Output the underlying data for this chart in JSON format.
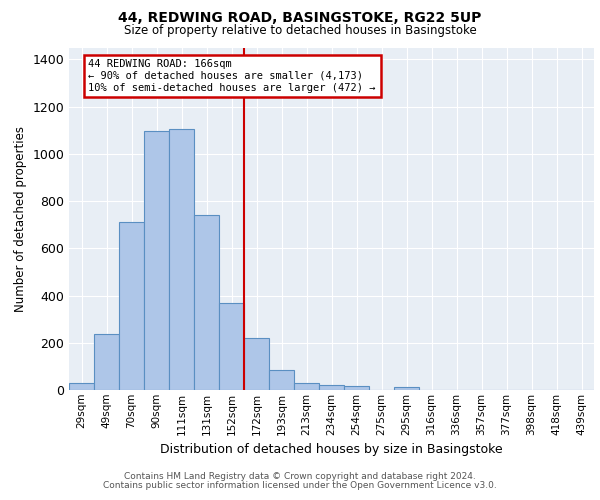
{
  "title1": "44, REDWING ROAD, BASINGSTOKE, RG22 5UP",
  "title2": "Size of property relative to detached houses in Basingstoke",
  "xlabel": "Distribution of detached houses by size in Basingstoke",
  "ylabel": "Number of detached properties",
  "categories": [
    "29sqm",
    "49sqm",
    "70sqm",
    "90sqm",
    "111sqm",
    "131sqm",
    "152sqm",
    "172sqm",
    "193sqm",
    "213sqm",
    "234sqm",
    "254sqm",
    "275sqm",
    "295sqm",
    "316sqm",
    "336sqm",
    "357sqm",
    "377sqm",
    "398sqm",
    "418sqm",
    "439sqm"
  ],
  "values": [
    30,
    235,
    710,
    1095,
    1105,
    740,
    370,
    220,
    85,
    30,
    20,
    18,
    0,
    12,
    0,
    0,
    0,
    0,
    0,
    0,
    0
  ],
  "bar_color": "#aec6e8",
  "bar_edge_color": "#5a8fc2",
  "vline_x": 6.5,
  "vline_color": "#cc0000",
  "annotation_title": "44 REDWING ROAD: 166sqm",
  "annotation_line1": "← 90% of detached houses are smaller (4,173)",
  "annotation_line2": "10% of semi-detached houses are larger (472) →",
  "annotation_box_color": "#cc0000",
  "ylim": [
    0,
    1450
  ],
  "yticks": [
    0,
    200,
    400,
    600,
    800,
    1000,
    1200,
    1400
  ],
  "bg_color": "#e8eef5",
  "footer1": "Contains HM Land Registry data © Crown copyright and database right 2024.",
  "footer2": "Contains public sector information licensed under the Open Government Licence v3.0."
}
